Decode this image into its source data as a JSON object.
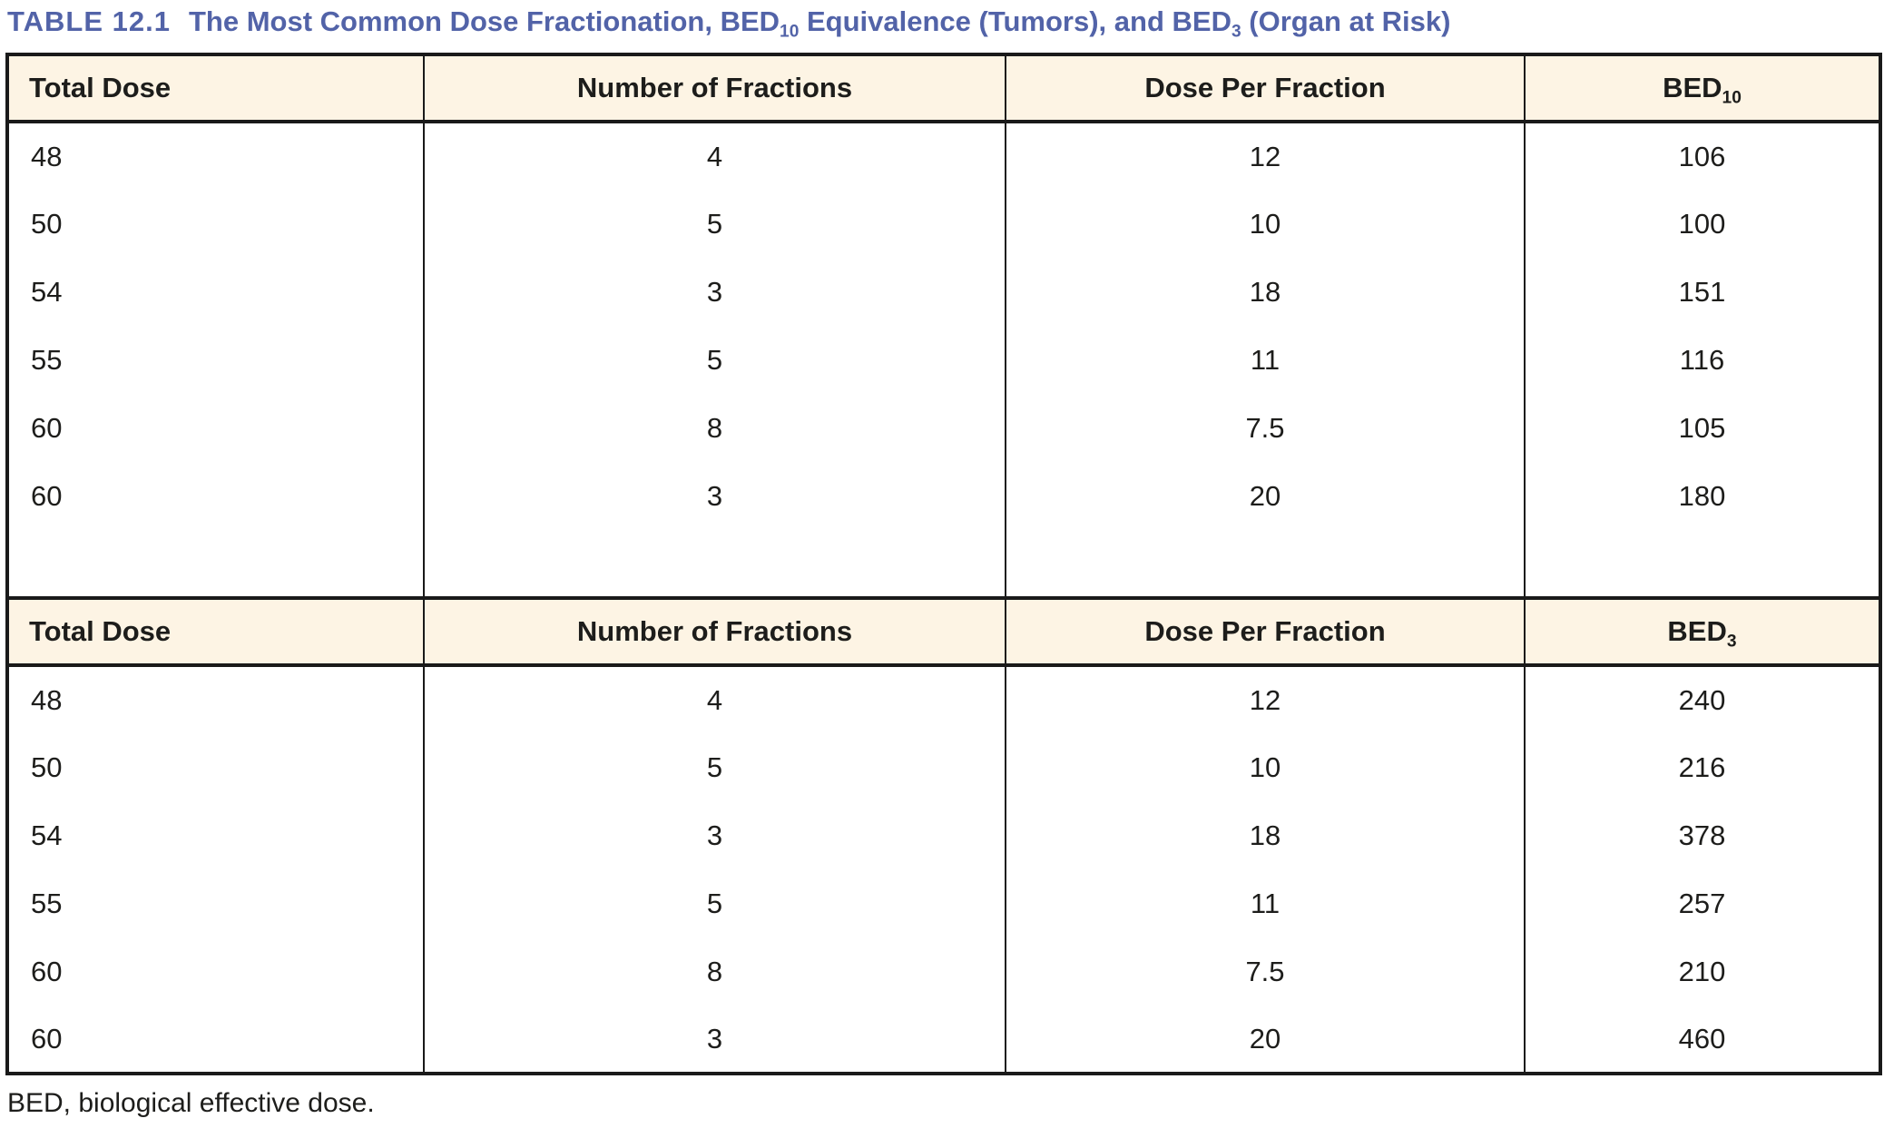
{
  "title": {
    "label": "TABLE 12.1",
    "part1": "The Most Common Dose Fractionation, BED",
    "sub1": "10",
    "part2": " Equivalence (Tumors), and BED",
    "sub2": "3",
    "part3": " (Organ at Risk)"
  },
  "colors": {
    "title_text": "#5263a8",
    "header_bg": "#fdf4e4",
    "border": "#1a1a1a",
    "text": "#1d1d1b"
  },
  "tables": [
    {
      "headers": {
        "total_dose": "Total Dose",
        "num_fractions": "Number of Fractions",
        "dose_per_fraction": "Dose Per Fraction",
        "bed_base": "BED",
        "bed_sub": "10"
      },
      "rows": [
        [
          "48",
          "4",
          "12",
          "106"
        ],
        [
          "50",
          "5",
          "10",
          "100"
        ],
        [
          "54",
          "3",
          "18",
          "151"
        ],
        [
          "55",
          "5",
          "11",
          "116"
        ],
        [
          "60",
          "8",
          "7.5",
          "105"
        ],
        [
          "60",
          "3",
          "20",
          "180"
        ]
      ]
    },
    {
      "headers": {
        "total_dose": "Total Dose",
        "num_fractions": "Number of Fractions",
        "dose_per_fraction": "Dose Per Fraction",
        "bed_base": "BED",
        "bed_sub": "3"
      },
      "rows": [
        [
          "48",
          "4",
          "12",
          "240"
        ],
        [
          "50",
          "5",
          "10",
          "216"
        ],
        [
          "54",
          "3",
          "18",
          "378"
        ],
        [
          "55",
          "5",
          "11",
          "257"
        ],
        [
          "60",
          "8",
          "7.5",
          "210"
        ],
        [
          "60",
          "3",
          "20",
          "460"
        ]
      ]
    }
  ],
  "footnote": "BED, biological effective dose."
}
